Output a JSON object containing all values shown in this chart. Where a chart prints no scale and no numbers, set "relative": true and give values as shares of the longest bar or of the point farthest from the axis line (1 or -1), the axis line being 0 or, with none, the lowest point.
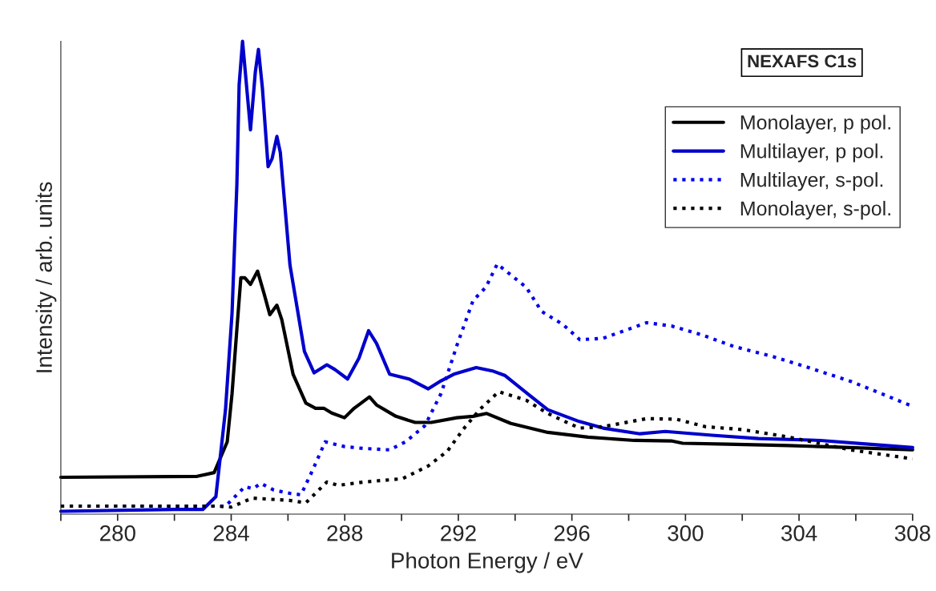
{
  "chart_data": {
    "type": "line",
    "relative": true,
    "xlabel": "Photon Energy / eV",
    "ylabel": "Intensity / arb. units",
    "annotations": [
      "NEXAFS C1s"
    ],
    "xlim": [
      278,
      308
    ],
    "xticks": [
      {
        "value": 278,
        "label": null
      },
      280,
      {
        "value": 282,
        "label": null
      },
      284,
      {
        "value": 286,
        "label": null
      },
      288,
      {
        "value": 290,
        "label": null
      },
      292,
      {
        "value": 294,
        "label": null
      },
      296,
      {
        "value": 298,
        "label": null
      },
      300,
      {
        "value": 302,
        "label": null
      },
      304,
      {
        "value": 306,
        "label": null
      },
      308
    ],
    "legend": "top right",
    "grid": false,
    "series": [
      {
        "name": "Monolayer, p pol.",
        "color": "#000000",
        "line_style": "solid",
        "x": [
          278,
          282.8,
          283.4,
          283.86,
          284.03,
          284.2,
          284.34,
          284.48,
          284.68,
          284.93,
          285.16,
          285.36,
          285.61,
          285.78,
          286.18,
          286.63,
          286.97,
          287.26,
          287.54,
          287.99,
          288.33,
          288.87,
          289.12,
          289.8,
          290.48,
          291.05,
          291.95,
          292.52,
          293.0,
          293.85,
          295.15,
          296.57,
          298.2,
          299.5,
          299.9,
          301.46,
          303.64,
          305.82,
          308
        ],
        "values": [
          0.078,
          0.08,
          0.088,
          0.153,
          0.255,
          0.391,
          0.5,
          0.5,
          0.486,
          0.514,
          0.466,
          0.422,
          0.442,
          0.412,
          0.296,
          0.235,
          0.224,
          0.224,
          0.214,
          0.204,
          0.224,
          0.248,
          0.231,
          0.207,
          0.194,
          0.194,
          0.204,
          0.207,
          0.213,
          0.192,
          0.173,
          0.163,
          0.156,
          0.155,
          0.15,
          0.148,
          0.145,
          0.141,
          0.136
        ]
      },
      {
        "name": "Multilayer, p pol.",
        "color": "#0000cc",
        "line_style": "solid",
        "x": [
          278,
          282,
          283.0,
          283.46,
          283.8,
          284.03,
          284.2,
          284.28,
          284.4,
          284.68,
          284.85,
          284.96,
          285.1,
          285.3,
          285.44,
          285.61,
          285.73,
          286.07,
          286.58,
          286.92,
          287.37,
          287.65,
          288.1,
          288.5,
          288.84,
          289.12,
          289.58,
          290.26,
          290.94,
          291.39,
          291.84,
          292.63,
          293.2,
          293.65,
          294.5,
          295.15,
          296.26,
          297.1,
          298.4,
          299.29,
          300.93,
          302.57,
          304.75,
          306.9,
          308
        ],
        "values": [
          0.006,
          0.01,
          0.01,
          0.037,
          0.221,
          0.425,
          0.697,
          0.908,
          1,
          0.813,
          0.935,
          0.983,
          0.901,
          0.735,
          0.752,
          0.799,
          0.765,
          0.527,
          0.344,
          0.299,
          0.316,
          0.306,
          0.286,
          0.33,
          0.388,
          0.361,
          0.296,
          0.286,
          0.265,
          0.282,
          0.296,
          0.31,
          0.303,
          0.293,
          0.252,
          0.221,
          0.196,
          0.182,
          0.17,
          0.175,
          0.167,
          0.16,
          0.156,
          0.146,
          0.141
        ]
      },
      {
        "name": "Multilayer, s-pol.",
        "color": "#0000ee",
        "line_style": "dotted",
        "x": [
          278,
          283,
          283.8,
          284.48,
          284.77,
          285.05,
          285.5,
          286.07,
          286.46,
          286.86,
          287.31,
          287.99,
          288.67,
          289.58,
          290.14,
          290.82,
          291.39,
          291.95,
          292.52,
          292.97,
          293.37,
          294.39,
          294.93,
          295.69,
          296.28,
          297.1,
          298.63,
          299.51,
          300.59,
          301.69,
          303.1,
          304.18,
          305.82,
          306.9,
          308
        ],
        "values": [
          0.017,
          0.017,
          0.017,
          0.058,
          0.054,
          0.065,
          0.051,
          0.044,
          0.041,
          0.092,
          0.153,
          0.143,
          0.139,
          0.136,
          0.153,
          0.187,
          0.255,
          0.357,
          0.452,
          0.48,
          0.529,
          0.48,
          0.429,
          0.401,
          0.369,
          0.372,
          0.405,
          0.398,
          0.379,
          0.355,
          0.333,
          0.313,
          0.281,
          0.255,
          0.228
        ]
      },
      {
        "name": "Monolayer, s-pol.",
        "color": "#000000",
        "line_style": "dotted",
        "x": [
          278,
          283.5,
          284.0,
          284.74,
          286.07,
          286.63,
          287.37,
          287.77,
          288.67,
          290.03,
          290.94,
          291.61,
          292.18,
          292.75,
          293.42,
          294.39,
          295.15,
          296.26,
          297.1,
          298.63,
          299.68,
          300.7,
          302.0,
          303.64,
          305.82,
          308
        ],
        "values": [
          0.017,
          0.017,
          0.015,
          0.034,
          0.029,
          0.024,
          0.068,
          0.061,
          0.068,
          0.075,
          0.102,
          0.133,
          0.18,
          0.221,
          0.259,
          0.241,
          0.213,
          0.182,
          0.185,
          0.202,
          0.201,
          0.185,
          0.179,
          0.163,
          0.136,
          0.117
        ]
      }
    ]
  }
}
